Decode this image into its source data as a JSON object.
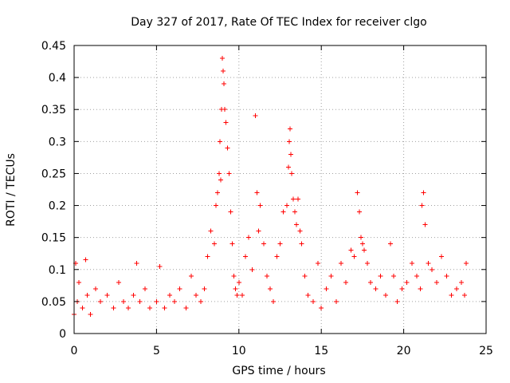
{
  "chart_data": {
    "type": "scatter",
    "title": "Day 327 of 2017, Rate Of TEC Index for receiver clgo",
    "xlabel": "GPS time / hours",
    "ylabel": "ROTI / TECUs",
    "xlim": [
      0,
      25
    ],
    "ylim": [
      0,
      0.45
    ],
    "x_ticks": [
      0,
      5,
      10,
      15,
      20,
      25
    ],
    "y_ticks": [
      0,
      0.05,
      0.1,
      0.15,
      0.2,
      0.25,
      0.3,
      0.35,
      0.4,
      0.45
    ],
    "x_tick_labels": [
      "0",
      "5",
      "10",
      "15",
      "20",
      "25"
    ],
    "y_tick_labels": [
      "0",
      "0.05",
      "0.1",
      "0.15",
      "0.2",
      "0.25",
      "0.3",
      "0.35",
      "0.4",
      "0.45"
    ],
    "grid": true,
    "marker": "plus",
    "colors": {
      "series": "#ff0000",
      "grid": "#a0a0a0",
      "axes": "#000000"
    },
    "series": [
      {
        "x": [
          0.0,
          0.1,
          0.2,
          0.3,
          0.5,
          0.7,
          0.8,
          1.0,
          1.3,
          1.6,
          2.0,
          2.4,
          2.7,
          3.0,
          3.3,
          3.6,
          3.8,
          4.0,
          4.3,
          4.6,
          5.0,
          5.2,
          5.5,
          5.8,
          6.1,
          6.4,
          6.8,
          7.1,
          7.4,
          7.7,
          7.9,
          8.1,
          8.3,
          8.5,
          8.6,
          8.7,
          8.8,
          8.85,
          8.9,
          8.95,
          9.0,
          9.05,
          9.1,
          9.15,
          9.2,
          9.3,
          9.4,
          9.5,
          9.6,
          9.7,
          9.8,
          9.9,
          10.0,
          10.2,
          10.4,
          10.6,
          10.8,
          11.0,
          11.1,
          11.2,
          11.3,
          11.5,
          11.7,
          11.9,
          12.1,
          12.3,
          12.5,
          12.7,
          12.9,
          13.0,
          13.05,
          13.1,
          13.15,
          13.2,
          13.3,
          13.4,
          13.5,
          13.6,
          13.7,
          13.8,
          14.0,
          14.2,
          14.5,
          14.8,
          15.0,
          15.3,
          15.6,
          15.9,
          16.2,
          16.5,
          16.8,
          17.0,
          17.2,
          17.3,
          17.4,
          17.5,
          17.6,
          17.8,
          18.0,
          18.3,
          18.6,
          18.9,
          19.2,
          19.4,
          19.6,
          19.9,
          20.2,
          20.5,
          20.8,
          21.0,
          21.1,
          21.2,
          21.3,
          21.5,
          21.7,
          22.0,
          22.3,
          22.6,
          22.9,
          23.2,
          23.5,
          23.7,
          23.8
        ],
        "y": [
          0.03,
          0.11,
          0.05,
          0.08,
          0.04,
          0.115,
          0.06,
          0.03,
          0.07,
          0.05,
          0.06,
          0.04,
          0.08,
          0.05,
          0.04,
          0.06,
          0.11,
          0.05,
          0.07,
          0.04,
          0.05,
          0.105,
          0.04,
          0.06,
          0.05,
          0.07,
          0.04,
          0.09,
          0.06,
          0.05,
          0.07,
          0.12,
          0.16,
          0.14,
          0.2,
          0.22,
          0.25,
          0.3,
          0.24,
          0.35,
          0.43,
          0.41,
          0.39,
          0.35,
          0.33,
          0.29,
          0.25,
          0.19,
          0.14,
          0.09,
          0.07,
          0.06,
          0.08,
          0.06,
          0.12,
          0.15,
          0.1,
          0.34,
          0.22,
          0.16,
          0.2,
          0.14,
          0.09,
          0.07,
          0.05,
          0.12,
          0.14,
          0.19,
          0.2,
          0.26,
          0.3,
          0.32,
          0.28,
          0.25,
          0.21,
          0.19,
          0.17,
          0.21,
          0.16,
          0.14,
          0.09,
          0.06,
          0.05,
          0.11,
          0.04,
          0.07,
          0.09,
          0.05,
          0.11,
          0.08,
          0.13,
          0.12,
          0.22,
          0.19,
          0.15,
          0.14,
          0.13,
          0.11,
          0.08,
          0.07,
          0.09,
          0.06,
          0.14,
          0.09,
          0.05,
          0.07,
          0.08,
          0.11,
          0.09,
          0.07,
          0.2,
          0.22,
          0.17,
          0.11,
          0.1,
          0.08,
          0.12,
          0.09,
          0.06,
          0.07,
          0.08,
          0.06,
          0.11
        ]
      }
    ]
  }
}
